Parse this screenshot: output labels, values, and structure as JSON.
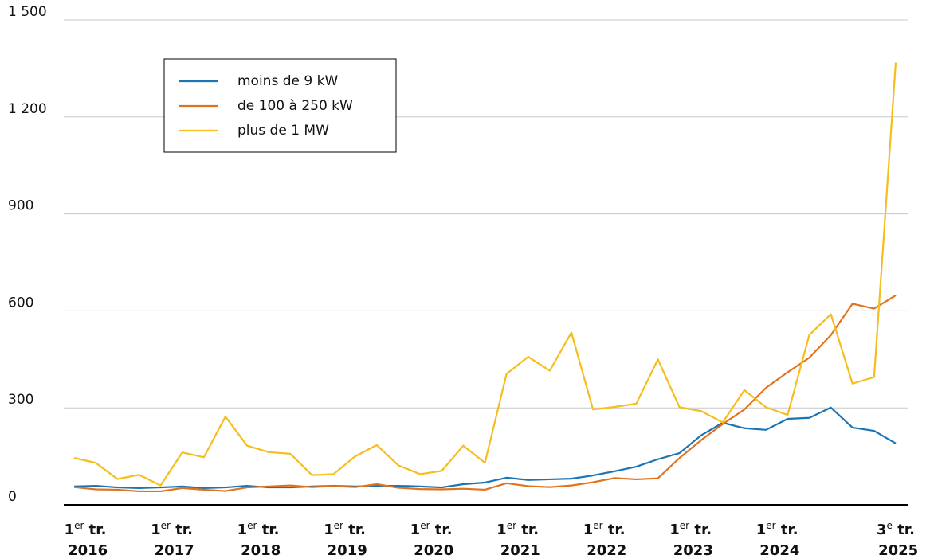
{
  "chart_data": {
    "type": "line",
    "categories": [
      "1er tr. 2016",
      null,
      null,
      null,
      "1er tr. 2017",
      null,
      null,
      null,
      "1er tr. 2018",
      null,
      null,
      null,
      "1er tr. 2019",
      null,
      null,
      null,
      "1er tr. 2020",
      null,
      null,
      null,
      "1er tr. 2021",
      null,
      null,
      null,
      "1er tr. 2022",
      null,
      null,
      null,
      "1er tr. 2023",
      null,
      null,
      null,
      "1er tr. 2024",
      null,
      null,
      null,
      null,
      null,
      "3e tr. 2025"
    ],
    "series": [
      {
        "name": "moins de 9 kW",
        "color": "#1b75b4",
        "values": [
          57,
          59,
          54,
          52,
          54,
          57,
          52,
          54,
          59,
          54,
          54,
          57,
          59,
          57,
          59,
          59,
          57,
          54,
          64,
          69,
          84,
          77,
          79,
          81,
          91,
          104,
          118,
          141,
          160,
          215,
          254,
          237,
          232,
          266,
          269,
          301,
          239,
          229,
          190
        ]
      },
      {
        "name": "de 100 à 250 kW",
        "color": "#e2731e",
        "values": [
          55,
          48,
          47,
          42,
          42,
          52,
          47,
          43,
          54,
          57,
          60,
          55,
          58,
          55,
          64,
          53,
          49,
          48,
          50,
          47,
          67,
          58,
          55,
          60,
          70,
          83,
          79,
          82,
          145,
          200,
          250,
          295,
          362,
          410,
          455,
          525,
          622,
          607,
          648
        ]
      },
      {
        "name": "plus de 1 MW",
        "color": "#f5bd1d",
        "values": [
          145,
          130,
          80,
          93,
          60,
          162,
          147,
          273,
          183,
          163,
          158,
          92,
          95,
          150,
          185,
          122,
          95,
          105,
          183,
          130,
          405,
          458,
          415,
          533,
          295,
          303,
          313,
          450,
          302,
          290,
          255,
          355,
          302,
          278,
          525,
          590,
          375,
          395,
          1368
        ]
      }
    ],
    "ylim": [
      0,
      1500
    ],
    "yticks": [
      0,
      300,
      600,
      900,
      {
        "value": 1200,
        "label": "1 200"
      },
      {
        "value": 1500,
        "label": "1 500"
      }
    ],
    "grid": true,
    "legend": "upper left"
  }
}
